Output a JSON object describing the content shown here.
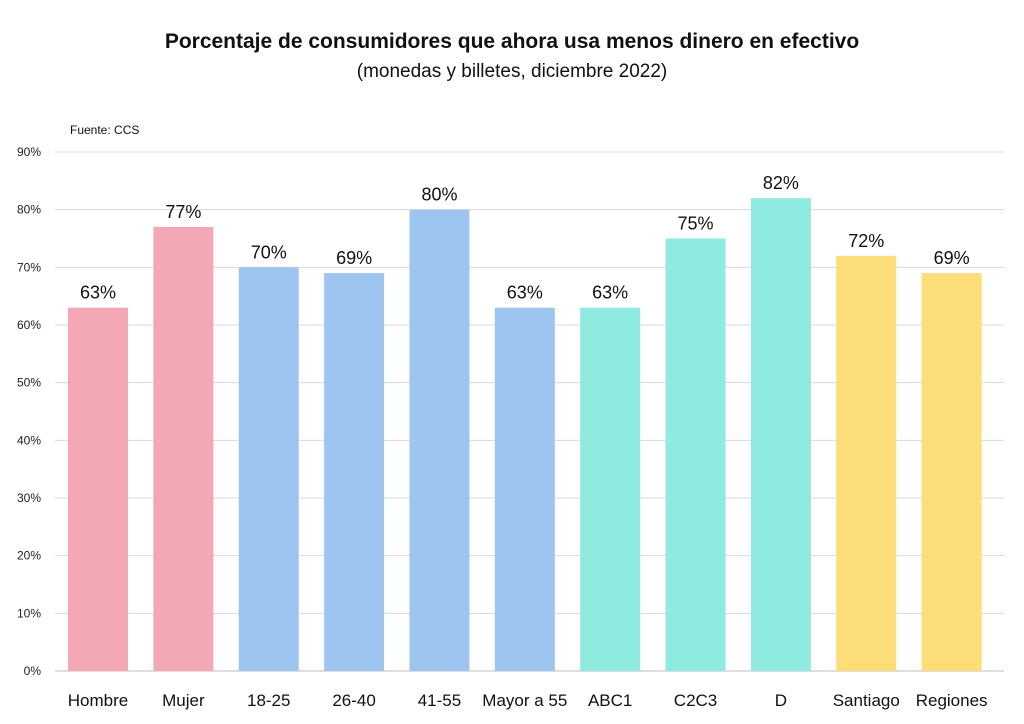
{
  "header": {
    "title": "Porcentaje de consumidores que ahora usa menos dinero en efectivo",
    "subtitle": "(monedas y billetes, diciembre 2022)",
    "source": "Fuente: CCS"
  },
  "chart_data": {
    "type": "bar",
    "title": "Porcentaje de consumidores que ahora usa menos dinero en efectivo",
    "subtitle": "(monedas y billetes, diciembre 2022)",
    "categories": [
      "Hombre",
      "Mujer",
      "18-25",
      "26-40",
      "41-55",
      "Mayor a 55",
      "ABC1",
      "C2C3",
      "D",
      "Santiago",
      "Regiones"
    ],
    "values": [
      63,
      77,
      70,
      69,
      80,
      63,
      63,
      75,
      82,
      72,
      69
    ],
    "data_labels": [
      "63%",
      "77%",
      "70%",
      "69%",
      "80%",
      "63%",
      "63%",
      "75%",
      "82%",
      "72%",
      "69%"
    ],
    "colors": [
      "#f4a7b4",
      "#f4a7b4",
      "#9ec5ef",
      "#9ec5ef",
      "#9ec5ef",
      "#9ec5ef",
      "#8feadf",
      "#8feadf",
      "#8feadf",
      "#fcdd78",
      "#fcdd78"
    ],
    "xlabel": "",
    "ylabel": "",
    "ylim": [
      0,
      90
    ],
    "yticks": [
      0,
      10,
      20,
      30,
      40,
      50,
      60,
      70,
      80,
      90
    ],
    "ytick_labels": [
      "0%",
      "10%",
      "20%",
      "30%",
      "40%",
      "50%",
      "60%",
      "70%",
      "80%",
      "90%"
    ],
    "grid": true,
    "gridline_color": "#d9d9d9",
    "source": "Fuente: CCS"
  }
}
